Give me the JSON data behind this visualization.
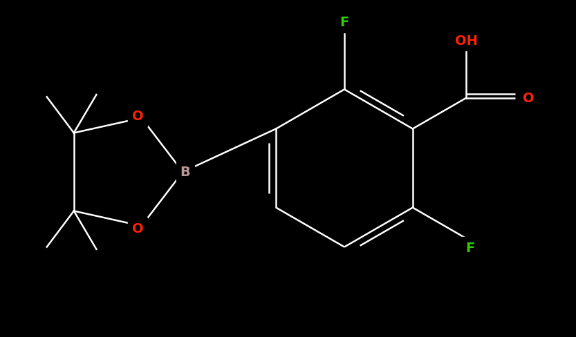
{
  "background_color": "#000000",
  "bond_color": "#ffffff",
  "atom_colors": {
    "F": "#33cc00",
    "O": "#ff2200",
    "B": "#bb9999",
    "C": "#ffffff"
  },
  "figsize": [
    8.33,
    4.89
  ],
  "dpi": 100,
  "bond_lw": 1.8,
  "font_size": 14
}
